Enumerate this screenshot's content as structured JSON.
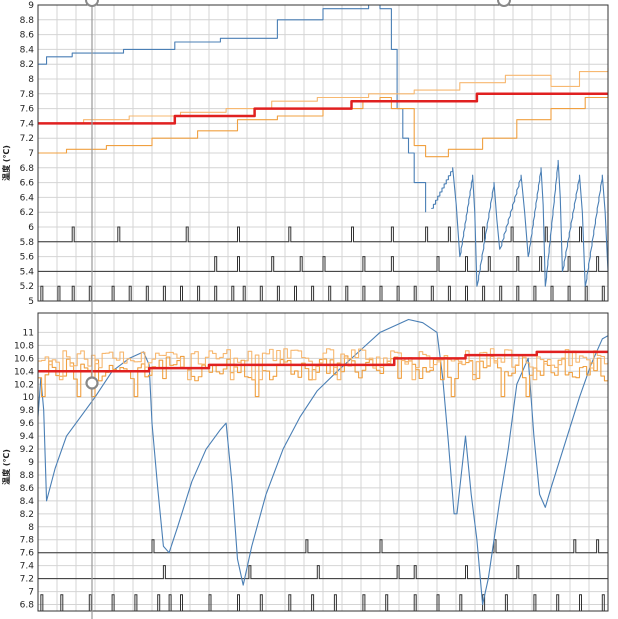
{
  "colors": {
    "series_blue": "#4a7fb5",
    "series_orange_1": "#f0a040",
    "series_orange_2": "#f7b870",
    "setpoint_red": "#e02020",
    "pulse_gray": "#333333",
    "grid": "#d4d4d4",
    "frame": "#333333",
    "cursor": "#999999"
  },
  "chart_data": [
    {
      "type": "line",
      "ylabel": "温度 (℃)",
      "ylim": [
        5.0,
        9.0
      ],
      "ytick_labels": [
        "5",
        "5.2",
        "5.4",
        "5.6",
        "5.8",
        "6",
        "6.2",
        "6.4",
        "6.6",
        "6.8",
        "7",
        "7.2",
        "7.4",
        "7.6",
        "7.8",
        "8",
        "8.2",
        "8.4",
        "8.6",
        "8.8",
        "9"
      ],
      "grid": true,
      "series": [
        {
          "color": "series_blue",
          "shape": "step",
          "points": [
            [
              0,
              8.2
            ],
            [
              0.015,
              8.3
            ],
            [
              0.06,
              8.35
            ],
            [
              0.15,
              8.4
            ],
            [
              0.24,
              8.5
            ],
            [
              0.32,
              8.55
            ],
            [
              0.42,
              8.8
            ],
            [
              0.5,
              8.95
            ],
            [
              0.58,
              9.0
            ],
            [
              0.6,
              8.95
            ],
            [
              0.62,
              8.4
            ],
            [
              0.63,
              7.6
            ],
            [
              0.64,
              7.2
            ],
            [
              0.65,
              7.0
            ],
            [
              0.66,
              6.6
            ],
            [
              0.68,
              6.2
            ]
          ]
        },
        {
          "color": "series_blue",
          "shape": "sawtooth",
          "cycles": [
            [
              0.69,
              6.25
            ],
            [
              0.74,
              5.6
            ],
            [
              0.77,
              5.2
            ],
            [
              0.81,
              5.7
            ],
            [
              0.86,
              5.6
            ],
            [
              0.89,
              5.2
            ],
            [
              0.92,
              5.4
            ],
            [
              0.96,
              5.2
            ],
            [
              1.0,
              5.4
            ]
          ],
          "peaks": [
            6.8,
            6.7,
            6.6,
            6.7,
            6.8,
            6.9,
            6.7,
            6.7,
            6.7
          ]
        },
        {
          "color": "series_orange_1",
          "shape": "step",
          "points": [
            [
              0,
              7.0
            ],
            [
              0.05,
              7.05
            ],
            [
              0.12,
              7.1
            ],
            [
              0.2,
              7.2
            ],
            [
              0.28,
              7.3
            ],
            [
              0.35,
              7.45
            ],
            [
              0.42,
              7.5
            ],
            [
              0.5,
              7.6
            ],
            [
              0.57,
              7.7
            ],
            [
              0.6,
              7.75
            ],
            [
              0.62,
              7.6
            ],
            [
              0.66,
              7.1
            ],
            [
              0.68,
              6.95
            ],
            [
              0.72,
              7.05
            ],
            [
              0.78,
              7.2
            ],
            [
              0.84,
              7.45
            ],
            [
              0.9,
              7.6
            ],
            [
              0.96,
              7.75
            ],
            [
              1.0,
              7.85
            ]
          ]
        },
        {
          "color": "series_orange_2",
          "shape": "step",
          "points": [
            [
              0,
              7.4
            ],
            [
              0.08,
              7.45
            ],
            [
              0.16,
              7.5
            ],
            [
              0.25,
              7.55
            ],
            [
              0.33,
              7.6
            ],
            [
              0.41,
              7.7
            ],
            [
              0.49,
              7.75
            ],
            [
              0.58,
              7.8
            ],
            [
              0.66,
              7.85
            ],
            [
              0.74,
              7.95
            ],
            [
              0.82,
              8.05
            ],
            [
              0.9,
              7.9
            ],
            [
              0.95,
              8.1
            ],
            [
              1.0,
              8.15
            ]
          ]
        },
        {
          "color": "setpoint_red",
          "shape": "step",
          "points": [
            [
              0,
              7.4
            ],
            [
              0.24,
              7.4
            ],
            [
              0.24,
              7.5
            ],
            [
              0.38,
              7.5
            ],
            [
              0.38,
              7.6
            ],
            [
              0.55,
              7.6
            ],
            [
              0.55,
              7.7
            ],
            [
              0.77,
              7.7
            ],
            [
              0.77,
              7.8
            ],
            [
              1.0,
              7.8
            ]
          ]
        }
      ],
      "pulse_rows": [
        {
          "base": 5.8,
          "height": 0.2,
          "positions": [
            0.06,
            0.14,
            0.26,
            0.35,
            0.44,
            0.55,
            0.62,
            0.68,
            0.72,
            0.78,
            0.83,
            0.89,
            0.95
          ]
        },
        {
          "base": 5.4,
          "height": 0.2,
          "positions": [
            0.31,
            0.35,
            0.41,
            0.46,
            0.5,
            0.57,
            0.62,
            0.7,
            0.75,
            0.79,
            0.84,
            0.88,
            0.93,
            0.98
          ]
        },
        {
          "base": 5.0,
          "height": 0.2,
          "positions": [
            0.005,
            0.035,
            0.06,
            0.09,
            0.13,
            0.16,
            0.19,
            0.22,
            0.25,
            0.28,
            0.31,
            0.34,
            0.36,
            0.39,
            0.42,
            0.45,
            0.48,
            0.51,
            0.54,
            0.57,
            0.6,
            0.63,
            0.66,
            0.69,
            0.72,
            0.75,
            0.78,
            0.81,
            0.84,
            0.87,
            0.9,
            0.93,
            0.96,
            0.99
          ]
        }
      ]
    },
    {
      "type": "line",
      "ylabel": "温度 (℃)",
      "ylim": [
        6.7,
        11.3
      ],
      "ytick_labels": [
        "6.8",
        "7",
        "7.2",
        "7.4",
        "7.6",
        "7.8",
        "8",
        "8.2",
        "8.4",
        "8.6",
        "8.8",
        "9",
        "9.2",
        "9.4",
        "9.6",
        "9.8",
        "10",
        "10.2",
        "10.4",
        "10.6",
        "10.8",
        "11"
      ],
      "grid": true,
      "series": [
        {
          "color": "series_blue",
          "shape": "polyline",
          "points": [
            [
              0,
              9.7
            ],
            [
              0.01,
              10.3
            ],
            [
              0.02,
              9.8
            ],
            [
              0.03,
              8.4
            ],
            [
              0.06,
              8.9
            ],
            [
              0.1,
              9.4
            ],
            [
              0.15,
              9.7
            ],
            [
              0.2,
              10.0
            ],
            [
              0.26,
              10.4
            ],
            [
              0.32,
              10.6
            ],
            [
              0.37,
              10.7
            ],
            [
              0.39,
              10.5
            ],
            [
              0.4,
              9.6
            ],
            [
              0.42,
              8.6
            ],
            [
              0.44,
              7.7
            ],
            [
              0.46,
              7.6
            ],
            [
              0.49,
              8.0
            ],
            [
              0.54,
              8.7
            ],
            [
              0.59,
              9.2
            ],
            [
              0.64,
              9.5
            ],
            [
              0.66,
              9.6
            ],
            [
              0.68,
              8.7
            ],
            [
              0.7,
              7.5
            ],
            [
              0.72,
              7.1
            ],
            [
              0.75,
              7.7
            ],
            [
              0.8,
              8.5
            ],
            [
              0.86,
              9.2
            ],
            [
              0.92,
              9.7
            ],
            [
              0.98,
              10.1
            ],
            [
              1.05,
              10.4
            ],
            [
              1.1,
              10.6
            ],
            [
              1.15,
              10.8
            ],
            [
              1.2,
              11.0
            ],
            [
              1.25,
              11.1
            ],
            [
              1.3,
              11.2
            ],
            [
              1.35,
              11.15
            ],
            [
              1.4,
              11.0
            ],
            [
              1.42,
              10.3
            ],
            [
              1.44,
              9.3
            ],
            [
              1.46,
              8.2
            ],
            [
              1.47,
              8.2
            ],
            [
              1.49,
              9.0
            ],
            [
              1.5,
              9.4
            ],
            [
              1.52,
              8.5
            ],
            [
              1.54,
              7.8
            ],
            [
              1.56,
              6.8
            ],
            [
              1.58,
              7.2
            ],
            [
              1.62,
              8.4
            ],
            [
              1.65,
              9.2
            ],
            [
              1.68,
              10.2
            ],
            [
              1.71,
              10.5
            ],
            [
              1.72,
              10.6
            ],
            [
              1.74,
              9.4
            ],
            [
              1.76,
              8.5
            ],
            [
              1.78,
              8.3
            ],
            [
              1.8,
              8.6
            ],
            [
              1.85,
              9.3
            ],
            [
              1.9,
              10.0
            ],
            [
              1.94,
              10.5
            ],
            [
              1.98,
              10.9
            ],
            [
              2.0,
              10.95
            ]
          ]
        },
        {
          "color": "series_orange_1",
          "shape": "noisy",
          "center": 10.45,
          "amplitude": 0.2
        },
        {
          "color": "series_orange_2",
          "shape": "noisy",
          "center": 10.6,
          "amplitude": 0.15
        },
        {
          "color": "setpoint_red",
          "shape": "step",
          "points": [
            [
              0,
              10.4
            ],
            [
              0.39,
              10.4
            ],
            [
              0.39,
              10.45
            ],
            [
              0.6,
              10.45
            ],
            [
              0.6,
              10.5
            ],
            [
              1.25,
              10.5
            ],
            [
              1.25,
              10.6
            ],
            [
              1.5,
              10.6
            ],
            [
              1.5,
              10.65
            ],
            [
              1.75,
              10.65
            ],
            [
              1.75,
              10.7
            ],
            [
              2.0,
              10.7
            ]
          ]
        }
      ],
      "pulse_rows": [
        {
          "base": 7.6,
          "height": 0.2,
          "positions": [
            0.2,
            0.47,
            0.6,
            0.8,
            0.94,
            0.98
          ]
        },
        {
          "base": 7.2,
          "height": 0.2,
          "positions": [
            0.22,
            0.37,
            0.49,
            0.63,
            0.66,
            0.75,
            0.84
          ]
        },
        {
          "base": 6.7,
          "height": 0.25,
          "positions": [
            0.005,
            0.04,
            0.09,
            0.13,
            0.17,
            0.21,
            0.23,
            0.25,
            0.3,
            0.35,
            0.39,
            0.44,
            0.48,
            0.52,
            0.57,
            0.61,
            0.66,
            0.7,
            0.74,
            0.78,
            0.82,
            0.87,
            0.91,
            0.95,
            0.99
          ]
        }
      ]
    }
  ]
}
